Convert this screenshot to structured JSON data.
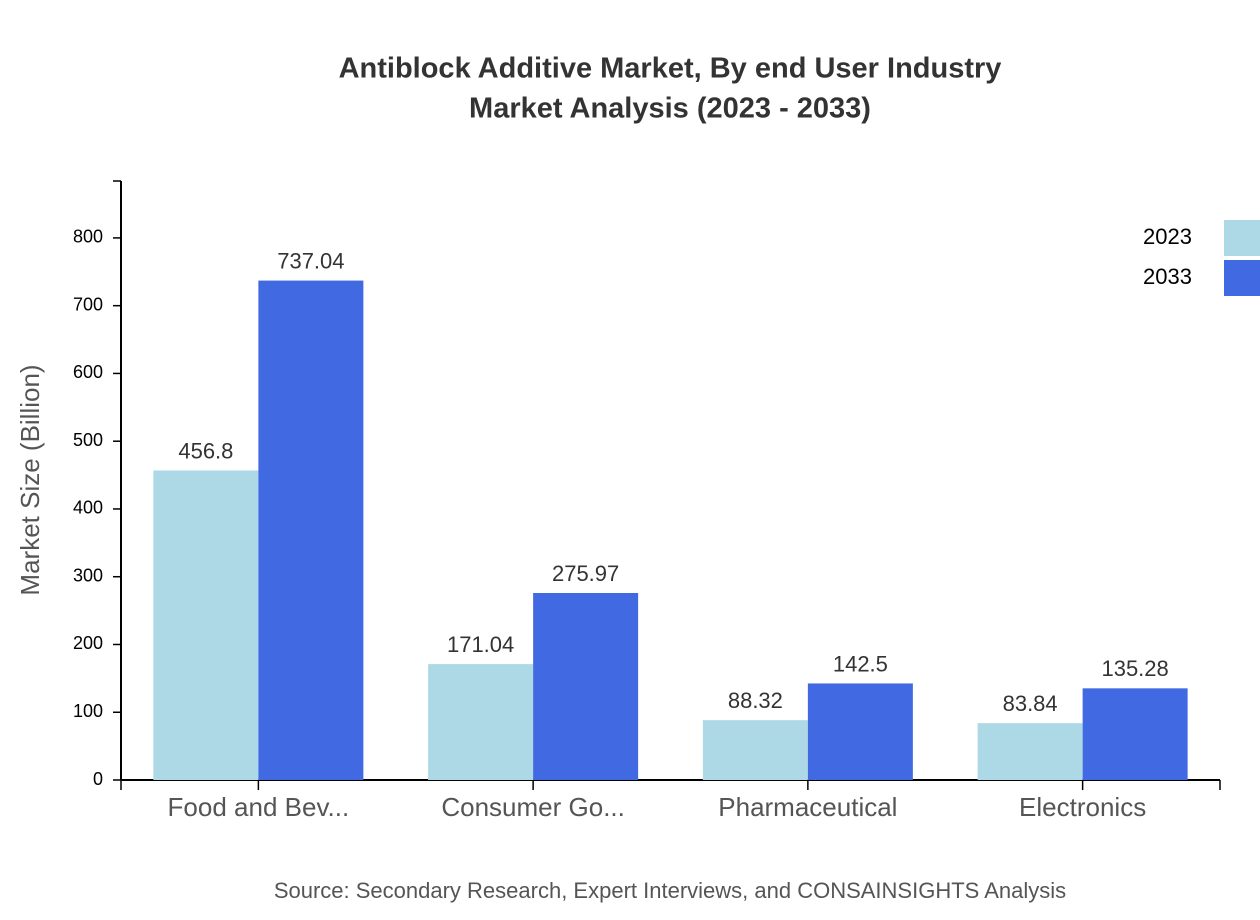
{
  "chart_data": {
    "type": "bar",
    "title": "Antiblock Additive Market, By end User Industry",
    "subtitle": "Market Analysis (2023 - 2033)",
    "y_label": "Market Size (Billion)",
    "source": "Source: Secondary Research, Expert Interviews, and CONSAINSIGHTS Analysis",
    "categories": [
      "Food and Bev...",
      "Consumer Go...",
      "Pharmaceutical",
      "Electronics"
    ],
    "series": [
      {
        "name": "2023",
        "color": "#add8e6",
        "values": [
          456.8,
          171.04,
          88.32,
          83.84
        ]
      },
      {
        "name": "2033",
        "color": "#4169e1",
        "values": [
          737.04,
          275.97,
          142.5,
          135.28
        ]
      }
    ],
    "ylim": [
      0,
      884
    ],
    "yticks": [
      0,
      100,
      200,
      300,
      400,
      500,
      600,
      700,
      800
    ],
    "legend": "top-right"
  }
}
